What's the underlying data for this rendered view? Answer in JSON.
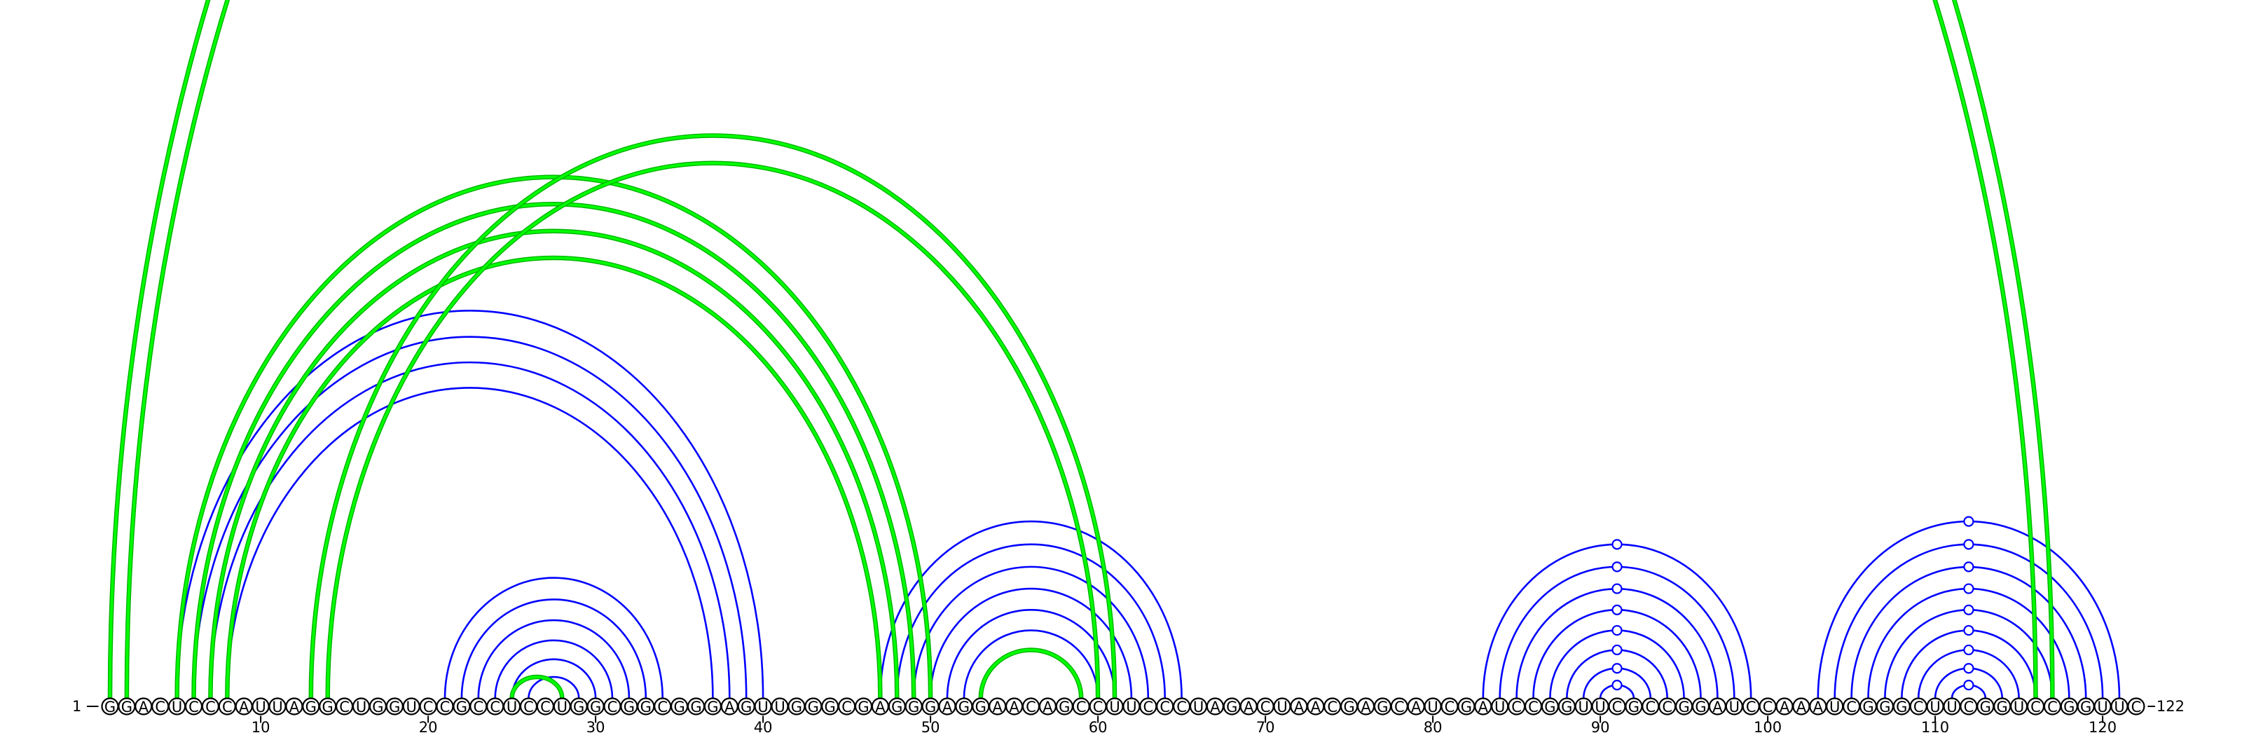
{
  "diagram": {
    "sequence": "GGACUCCCAUUAGGCUGGUCCGCCUCCUGGCGGCGGGAGUUGGGCGAGGGAGGAACAGCCUUCCCUAGACUAACGAGCAUCGAUCCGGUUCGCCGGAUCCAAAUCGGGCUUCGGUCCGGUUC",
    "start_label": "1",
    "end_label": "122",
    "tick_labels": [
      "10",
      "20",
      "30",
      "40",
      "50",
      "60",
      "70",
      "80",
      "90",
      "100",
      "110",
      "120"
    ],
    "colors": {
      "reference_pairs": "#0000ff",
      "predicted_pairs": "#00ff00",
      "outline": "#000000"
    },
    "blue_pairs": [
      [
        5,
        40
      ],
      [
        6,
        39
      ],
      [
        7,
        38
      ],
      [
        8,
        37
      ],
      [
        21,
        34
      ],
      [
        22,
        33
      ],
      [
        23,
        32
      ],
      [
        24,
        31
      ],
      [
        25,
        30
      ],
      [
        26,
        29
      ],
      [
        47,
        65
      ],
      [
        48,
        64
      ],
      [
        49,
        63
      ],
      [
        50,
        62
      ],
      [
        51,
        61
      ],
      [
        52,
        60
      ],
      [
        53,
        59
      ],
      [
        83,
        99
      ],
      [
        84,
        98
      ],
      [
        85,
        97
      ],
      [
        86,
        96
      ],
      [
        87,
        95
      ],
      [
        88,
        94
      ],
      [
        89,
        93
      ],
      [
        90,
        92
      ],
      [
        103,
        121
      ],
      [
        104,
        120
      ],
      [
        105,
        119
      ],
      [
        106,
        118
      ],
      [
        107,
        117
      ],
      [
        108,
        116
      ],
      [
        109,
        115
      ],
      [
        110,
        114
      ],
      [
        111,
        113
      ]
    ],
    "green_pairs": [
      [
        1,
        117
      ],
      [
        2,
        116
      ],
      [
        5,
        50
      ],
      [
        6,
        49
      ],
      [
        7,
        48
      ],
      [
        8,
        47
      ],
      [
        13,
        61
      ],
      [
        14,
        60
      ],
      [
        25,
        28
      ],
      [
        53,
        59
      ]
    ],
    "bead_markers": [
      {
        "nt": 91,
        "style": "open",
        "color": "#0000ff"
      },
      {
        "nt": 112,
        "style": "open",
        "color": "#0000ff"
      },
      {
        "nt": 27,
        "style": "filled",
        "color": "#00ff00"
      }
    ]
  }
}
